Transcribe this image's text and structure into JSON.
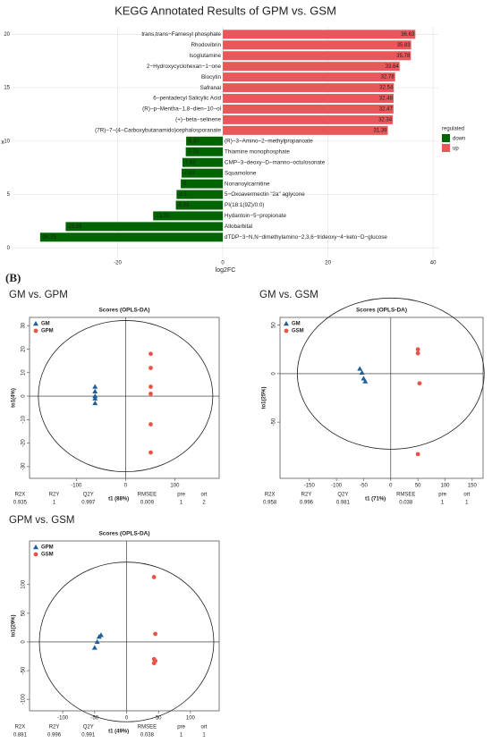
{
  "panel_label": "(B)",
  "chart_data": [
    {
      "type": "hbar",
      "title": "KEGG Annotated Results of GPM vs. GSM",
      "x_label": "log2FC",
      "y_label": "x",
      "categories": [
        "trans,trans−Farnesyl phosphate",
        "Rhodovibrin",
        "Isoglutamine",
        "2−Hydroxycyclohexan−1−one",
        "Biocytin",
        "Safranal",
        "6−pentadecyl Salicylic Acid",
        "(R)−p−Mentha−1,8−dien−10−ol",
        "(+)−beta−selinene",
        "(7R)−7−(4−Carboxybutanamido)cephalosporanate",
        "(R)−3−Amino−2−methylpropanoate",
        "Thiamine monophosphate",
        "CMP−3−deoxy−D−manno−octulosonate",
        "Squamolone",
        "Nonanoylcarnitine",
        "5−Oxoavermectin \"2a\" aglycone",
        "PI(18:1(9Z)/0:0)",
        "Hydantoin−5−propionate",
        "Allobarbital",
        "dTDP−3−N,N−dimethylamino−2,3,6−trideoxy−4−keto−D−glucose"
      ],
      "values": [
        36.63,
        35.83,
        35.78,
        33.64,
        32.78,
        32.54,
        32.48,
        32.47,
        32.34,
        31.39,
        -6.97,
        -7.05,
        -7.68,
        -7.83,
        -8,
        -8.8,
        -8.93,
        -13.25,
        -29.89,
        -34.75
      ],
      "xlim": [
        -40,
        41
      ],
      "xticks": [
        -20,
        0,
        20,
        40
      ],
      "ylim": [
        -0.9,
        20.7
      ],
      "yticks": [
        0,
        5,
        10,
        15,
        20
      ],
      "grid": true,
      "legend": {
        "title": "regulated",
        "items": [
          {
            "name": "down",
            "color": "#006400"
          },
          {
            "name": "up",
            "color": "#e8585a"
          }
        ]
      }
    },
    {
      "type": "scatter",
      "panel_title": "GM vs. GPM",
      "title": "Scores (OPLS-DA)",
      "x_label": "t1 (88%)",
      "y_label": "to1(4%)",
      "xlim": [
        -195,
        190
      ],
      "xticks": [
        -100,
        0,
        100
      ],
      "ylim": [
        -35,
        33.5
      ],
      "yticks": [
        -30,
        -20,
        -10,
        0,
        10,
        20,
        30
      ],
      "series": [
        {
          "name": "GM",
          "color": "#1f5f99",
          "marker": "triangle",
          "x": [
            -62,
            -62,
            -62,
            -62,
            -62
          ],
          "y": [
            4,
            2,
            0,
            -1,
            -3
          ]
        },
        {
          "name": "GPM",
          "color": "#e8534a",
          "marker": "circle",
          "x": [
            51,
            51,
            51,
            51,
            51,
            51
          ],
          "y": [
            18,
            12,
            4,
            1,
            -12,
            -24
          ]
        }
      ],
      "stats": {
        "labels": [
          "R2X",
          "R2Y",
          "Q2Y",
          "RMSEE",
          "pre",
          "ort"
        ],
        "values": [
          0.935,
          1,
          0.997,
          0.009,
          1,
          2
        ]
      }
    },
    {
      "type": "scatter",
      "panel_title": "GM vs. GSM",
      "title": "Scores (OPLS-DA)",
      "x_label": "t1 (71%)",
      "y_label": "to1(25%)",
      "xlim": [
        -204,
        170
      ],
      "xticks": [
        -150,
        -100,
        -50,
        0,
        50,
        100,
        150
      ],
      "ylim": [
        -108,
        58
      ],
      "yticks": [
        -50,
        0,
        50
      ],
      "series": [
        {
          "name": "GM",
          "color": "#1f5f99",
          "marker": "triangle",
          "x": [
            -57,
            -53,
            -50,
            -47
          ],
          "y": [
            5,
            1,
            -5,
            -8
          ]
        },
        {
          "name": "GSM",
          "color": "#e8534a",
          "marker": "circle",
          "x": [
            50,
            50,
            53,
            50
          ],
          "y": [
            25,
            21,
            -10,
            -83
          ]
        }
      ],
      "stats": {
        "labels": [
          "R2X",
          "R2Y",
          "Q2Y",
          "RMSEE",
          "pre",
          "ort"
        ],
        "values": [
          0.958,
          0.996,
          0.981,
          0.038,
          1,
          1
        ]
      }
    },
    {
      "type": "scatter",
      "panel_title": "GPM vs. GSM",
      "title": "Scores (OPLS-DA)",
      "x_label": "t1 (49%)",
      "y_label": "to1(29%)",
      "xlim": [
        -152,
        145
      ],
      "xticks": [
        -100,
        -50,
        0,
        50,
        100
      ],
      "ylim": [
        -120,
        176
      ],
      "yticks": [
        -100,
        -50,
        0,
        50,
        100
      ],
      "series": [
        {
          "name": "GPM",
          "color": "#1f5f99",
          "marker": "triangle",
          "x": [
            -40,
            -43,
            -46,
            -50
          ],
          "y": [
            12,
            9,
            0,
            -10
          ]
        },
        {
          "name": "GSM",
          "color": "#e8534a",
          "marker": "circle",
          "x": [
            43,
            45,
            43,
            45,
            43
          ],
          "y": [
            113,
            14,
            -30,
            -33,
            -37
          ]
        }
      ],
      "stats": {
        "labels": [
          "R2X",
          "R2Y",
          "Q2Y",
          "RMSEE",
          "pre",
          "ort"
        ],
        "values": [
          0.881,
          0.996,
          0.991,
          0.038,
          1,
          1
        ]
      }
    }
  ]
}
